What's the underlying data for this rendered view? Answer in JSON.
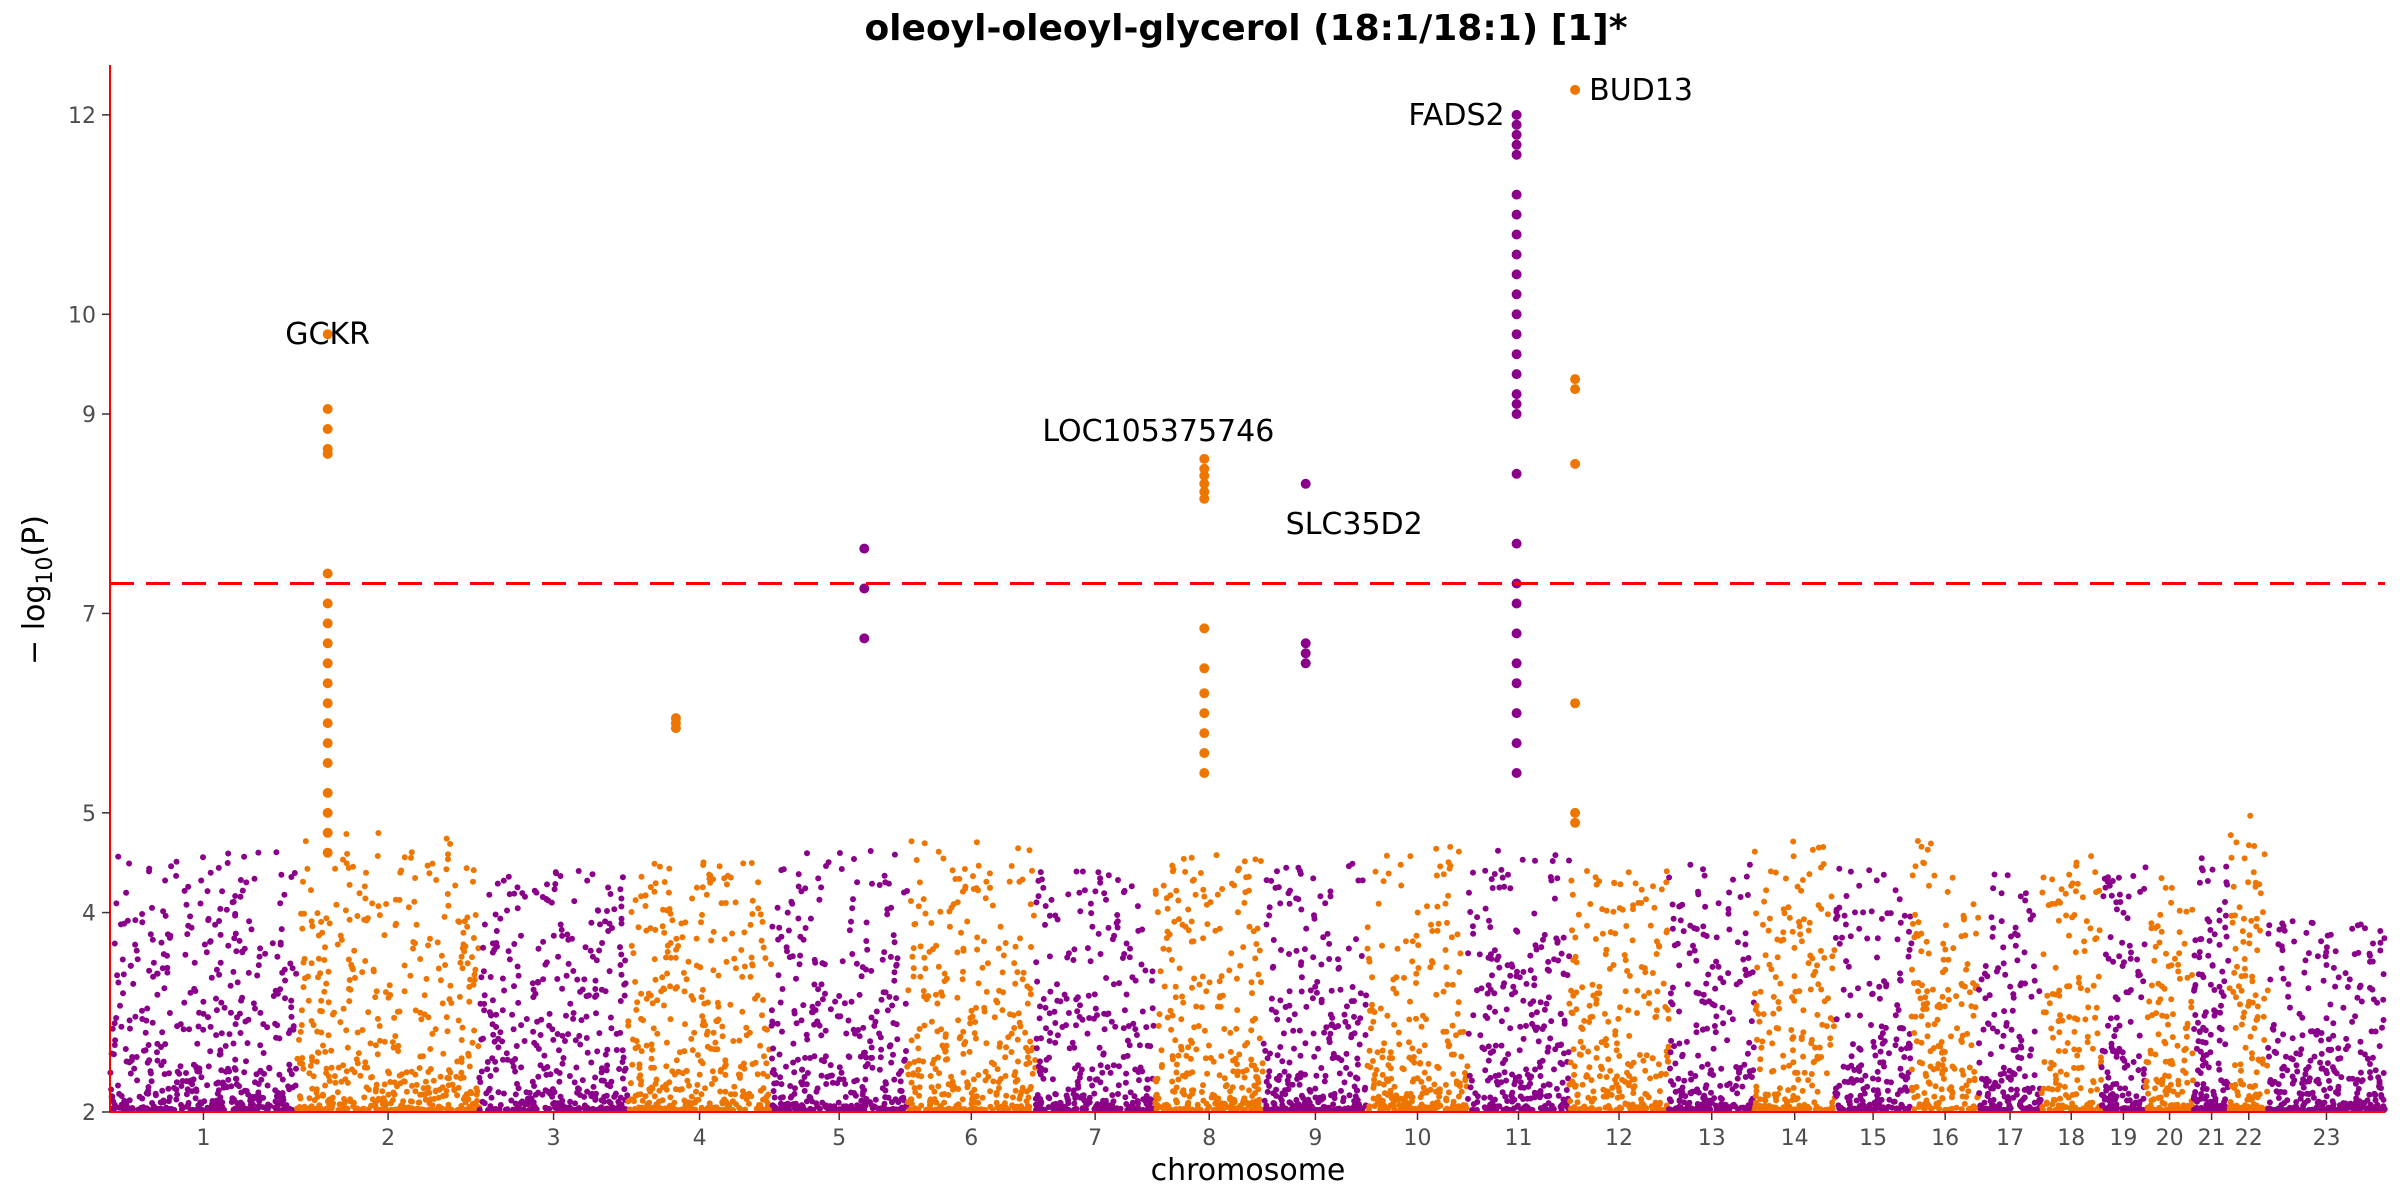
{
  "chart_data": {
    "type": "scatter",
    "title": "oleoyl-oleoyl-glycerol (18:1/18:1) [1]*",
    "xlabel": "chromosome",
    "ylabel_prefix": "− log",
    "ylabel_sub": "10",
    "ylabel_suffix": "(P)",
    "ylim": [
      2,
      12.5
    ],
    "yticks": [
      2,
      4,
      5,
      7,
      9,
      10,
      12
    ],
    "threshold": 7.3,
    "threshold_color": "#ff0000",
    "axis_color": "#ff0000",
    "colors": [
      "#8b008b",
      "#ee7600"
    ],
    "chromosomes": [
      {
        "label": "1",
        "cum_start": 0,
        "len": 249,
        "bg_max": 4.2
      },
      {
        "label": "2",
        "cum_start": 249,
        "len": 243,
        "bg_max": 4.4
      },
      {
        "label": "3",
        "cum_start": 492,
        "len": 198,
        "bg_max": 4.0
      },
      {
        "label": "4",
        "cum_start": 690,
        "len": 191,
        "bg_max": 4.1
      },
      {
        "label": "5",
        "cum_start": 881,
        "len": 181,
        "bg_max": 4.2
      },
      {
        "label": "6",
        "cum_start": 1062,
        "len": 171,
        "bg_max": 4.3
      },
      {
        "label": "7",
        "cum_start": 1233,
        "len": 159,
        "bg_max": 4.0
      },
      {
        "label": "8",
        "cum_start": 1392,
        "len": 145,
        "bg_max": 4.2
      },
      {
        "label": "9",
        "cum_start": 1537,
        "len": 138,
        "bg_max": 4.1
      },
      {
        "label": "10",
        "cum_start": 1675,
        "len": 134,
        "bg_max": 4.3
      },
      {
        "label": "11",
        "cum_start": 1809,
        "len": 135,
        "bg_max": 4.2
      },
      {
        "label": "12",
        "cum_start": 1944,
        "len": 133,
        "bg_max": 4.0
      },
      {
        "label": "13",
        "cum_start": 2077,
        "len": 114,
        "bg_max": 4.1
      },
      {
        "label": "14",
        "cum_start": 2191,
        "len": 107,
        "bg_max": 4.3
      },
      {
        "label": "15",
        "cum_start": 2298,
        "len": 102,
        "bg_max": 4.1
      },
      {
        "label": "16",
        "cum_start": 2400,
        "len": 90,
        "bg_max": 4.4
      },
      {
        "label": "17",
        "cum_start": 2490,
        "len": 83,
        "bg_max": 4.0
      },
      {
        "label": "18",
        "cum_start": 2573,
        "len": 80,
        "bg_max": 4.2
      },
      {
        "label": "19",
        "cum_start": 2653,
        "len": 59,
        "bg_max": 4.1
      },
      {
        "label": "20",
        "cum_start": 2712,
        "len": 64,
        "bg_max": 4.0
      },
      {
        "label": "21",
        "cum_start": 2776,
        "len": 48,
        "bg_max": 4.3
      },
      {
        "label": "22",
        "cum_start": 2824,
        "len": 51,
        "bg_max": 4.6
      },
      {
        "label": "23",
        "cum_start": 2875,
        "len": 156,
        "bg_max": 3.5
      }
    ],
    "peaks": [
      {
        "pos": 290,
        "values": [
          9.8,
          9.05,
          8.85,
          8.65,
          8.6,
          7.4,
          7.1,
          6.9,
          6.7,
          6.5,
          6.3,
          6.1,
          5.9,
          5.7,
          5.5,
          5.2,
          5.0,
          4.8,
          4.6
        ]
      },
      {
        "pos": 1458,
        "values": [
          8.55,
          8.45,
          8.38,
          8.3,
          8.22,
          8.15,
          6.85,
          6.45,
          6.2,
          6.0,
          5.8,
          5.6,
          5.4
        ]
      },
      {
        "pos": 1593,
        "values": [
          8.3,
          6.7,
          6.6,
          6.5
        ]
      },
      {
        "pos": 1874,
        "values": [
          12.0,
          11.9,
          11.8,
          11.7,
          11.6,
          11.2,
          11.0,
          10.8,
          10.6,
          10.4,
          10.2,
          10.0,
          9.8,
          9.6,
          9.4,
          9.2,
          9.1,
          9.0,
          8.4,
          7.7,
          7.3,
          7.1,
          6.8,
          6.5,
          6.3,
          6.0,
          5.7,
          5.4
        ]
      },
      {
        "pos": 1952,
        "values": [
          12.25,
          9.35,
          9.25,
          8.5,
          6.1,
          5.0,
          4.9
        ]
      },
      {
        "pos": 1005,
        "values": [
          7.65,
          7.25,
          6.75
        ]
      },
      {
        "pos": 754,
        "values": [
          5.95,
          5.9,
          5.85
        ]
      }
    ],
    "annotations": [
      {
        "label": "GCKR",
        "x": 290,
        "y": 9.8,
        "anchor": "middle",
        "dx": 0,
        "dy": 0
      },
      {
        "label": "LOC105375746",
        "x": 1458,
        "y": 8.55,
        "anchor": "end",
        "dx": 70,
        "dy": -28
      },
      {
        "label": "SLC35D2",
        "x": 1593,
        "y": 8.3,
        "anchor": "start",
        "dx": -20,
        "dy": 40
      },
      {
        "label": "FADS2",
        "x": 1874,
        "y": 12.0,
        "anchor": "end",
        "dx": -12,
        "dy": 0
      },
      {
        "label": "BUD13",
        "x": 1952,
        "y": 12.25,
        "anchor": "start",
        "dx": 14,
        "dy": 0
      }
    ]
  }
}
